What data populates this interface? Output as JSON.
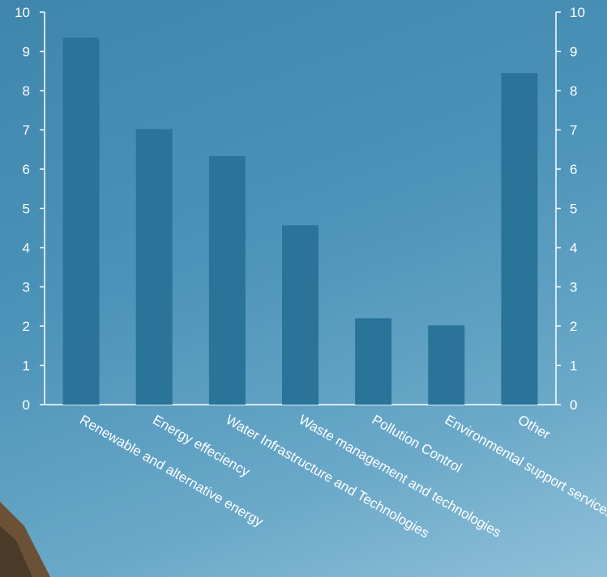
{
  "chart_data": {
    "type": "bar",
    "title": "",
    "xlabel": "",
    "ylabel": "",
    "categories": [
      "Renewable and alternative energy",
      "Energy effeciency",
      "Water Infrastructure and Technologies",
      "Waste management and technologies",
      "Pollution Control",
      "Environmental support services",
      "Other"
    ],
    "values": [
      9.35,
      7.02,
      6.33,
      4.57,
      2.2,
      2.02,
      8.45
    ],
    "ylim": [
      0,
      10
    ],
    "yticks": [
      "0",
      "1",
      "2",
      "3",
      "4",
      "5",
      "6",
      "7",
      "8",
      "9",
      "10"
    ],
    "secondary_axis": true,
    "grid": false,
    "legend": "none",
    "bar_color": "#2a7399",
    "axis_color": "#ffffff",
    "text_color": "#ffffff"
  }
}
